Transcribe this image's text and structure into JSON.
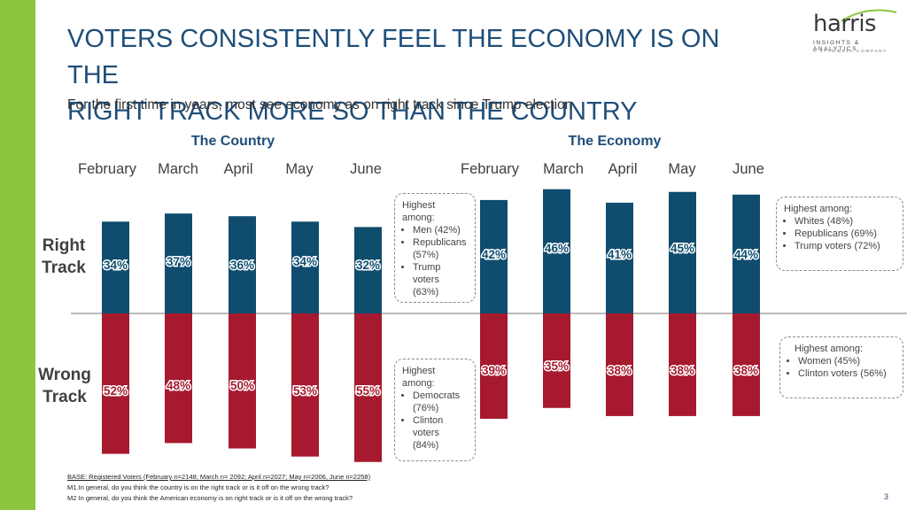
{
  "title_lines": [
    "VOTERS CONSISTENTLY FEEL THE ECONOMY IS ON THE",
    "RIGHT TRACK MORE SO THAN THE COUNTRY"
  ],
  "subtitle": "For the first time in years, most see economy as on right track since Trump election",
  "logo": {
    "word": "harris",
    "line1": "INSIGHTS & ANALYTICS",
    "line2": "A STAGWELL COMPANY"
  },
  "colors": {
    "right_track": "#0f4c6e",
    "wrong_track": "#a6192e",
    "accent_green": "#8cc63f",
    "title": "#1f4e79"
  },
  "chart_data": {
    "type": "bar",
    "title": "",
    "legend": "none",
    "row_labels": [
      "Right\nTrack",
      "Wrong\nTrack"
    ],
    "panels": [
      {
        "name": "The Country",
        "categories": [
          "February",
          "March",
          "April",
          "May",
          "June"
        ],
        "series": [
          {
            "name": "Right Track",
            "values": [
              34,
              37,
              36,
              34,
              32
            ],
            "labels": [
              "34%",
              "37%",
              "36%",
              "34%",
              "32%"
            ]
          },
          {
            "name": "Wrong Track",
            "values": [
              52,
              48,
              50,
              53,
              55
            ],
            "labels": [
              "52%",
              "48%",
              "50%",
              "53%",
              "55%"
            ]
          }
        ]
      },
      {
        "name": "The Economy",
        "categories": [
          "February",
          "March",
          "April",
          "May",
          "June"
        ],
        "series": [
          {
            "name": "Right Track",
            "values": [
              42,
              46,
              41,
              45,
              44
            ],
            "labels": [
              "42%",
              "46%",
              "41%",
              "45%",
              "44%"
            ]
          },
          {
            "name": "Wrong Track",
            "values": [
              39,
              35,
              38,
              38,
              38
            ],
            "labels": [
              "39%",
              "35%",
              "38%",
              "38%",
              "38%"
            ]
          }
        ]
      }
    ]
  },
  "callouts": {
    "country_right": {
      "heading": "Highest among:",
      "items": [
        "Men (42%)",
        "Republicans (57%)",
        "Trump voters (63%)"
      ]
    },
    "country_wrong": {
      "heading": "Highest among:",
      "items": [
        "Democrats (76%)",
        "Clinton voters (84%)"
      ]
    },
    "economy_right": {
      "heading": "Highest among:",
      "items": [
        "Whites (48%)",
        "Republicans (69%)",
        "Trump voters (72%)"
      ]
    },
    "economy_wrong": {
      "heading": "Highest among:",
      "items": [
        "Women (45%)",
        "Clinton voters (56%)"
      ]
    }
  },
  "footnotes": {
    "base": "BASE: Registered Voters (February n=2148; March n= 2092; April n=2027; May n=2006, June n=2258)",
    "m1": "M1.In general, do you think the country is on the right track or is it off on the wrong track?",
    "m2": "M2 In general, do you think the American economy is on right track or is it off on the wrong track?"
  },
  "page_number": "3"
}
